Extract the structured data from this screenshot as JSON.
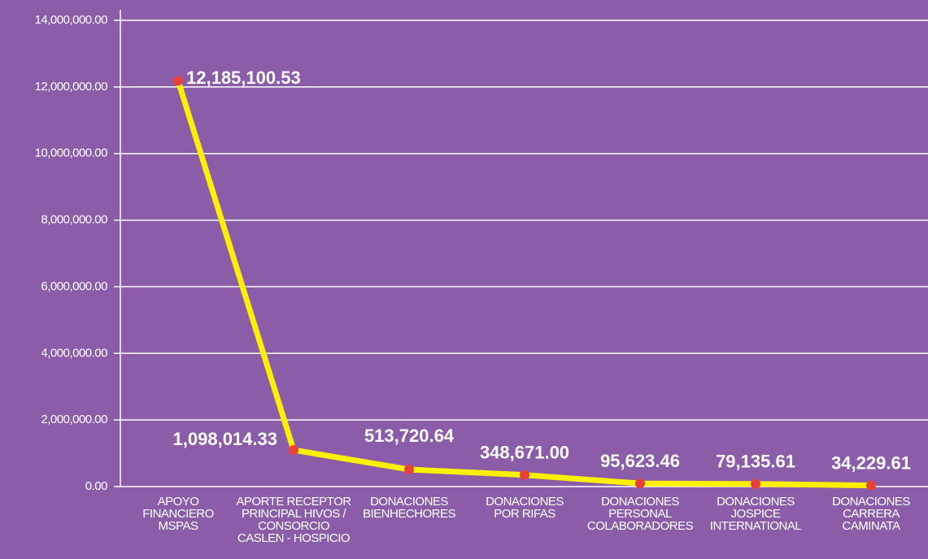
{
  "chart_data": {
    "type": "line",
    "categories": [
      "APOYO\nFINANCIERO\nMSPAS",
      "APORTE RECEPTOR\nPRINCIPAL HIVOS /\nCONSORCIO\nCASLEN - HOSPICIO",
      "DONACIONES\nBIENHECHORES",
      "DONACIONES\nPOR RIFAS",
      "DONACIONES\nPERSONAL\nCOLABORADORES",
      "DONACIONES\nJOSPICE\nINTERNATIONAL",
      "DONACIONES\nCARRERA\nCAMINATA"
    ],
    "series": [
      {
        "color": "#ffef00",
        "marker_color": "#e8413a",
        "values": [
          12185100.53,
          1098014.33,
          513720.64,
          348671.0,
          95623.46,
          79135.61,
          34229.61
        ],
        "value_labels": [
          "12,185,100.53",
          "1,098,014.33",
          "513,720.64",
          "348,671.00",
          "95,623.46",
          "79,135.61",
          "34,229.61"
        ]
      }
    ],
    "ylim": [
      0,
      14000000
    ],
    "yticks": [
      {
        "value": 0,
        "label": "0.00"
      },
      {
        "value": 2000000,
        "label": "2,000,000.00"
      },
      {
        "value": 4000000,
        "label": "4,000,000.00"
      },
      {
        "value": 6000000,
        "label": "6,000,000.00"
      },
      {
        "value": 8000000,
        "label": "8,000,000.00"
      },
      {
        "value": 10000000,
        "label": "10,000,000.00"
      },
      {
        "value": 12000000,
        "label": "12,000,000.00"
      },
      {
        "value": 14000000,
        "label": "14,000,000.00"
      }
    ],
    "grid": true
  }
}
